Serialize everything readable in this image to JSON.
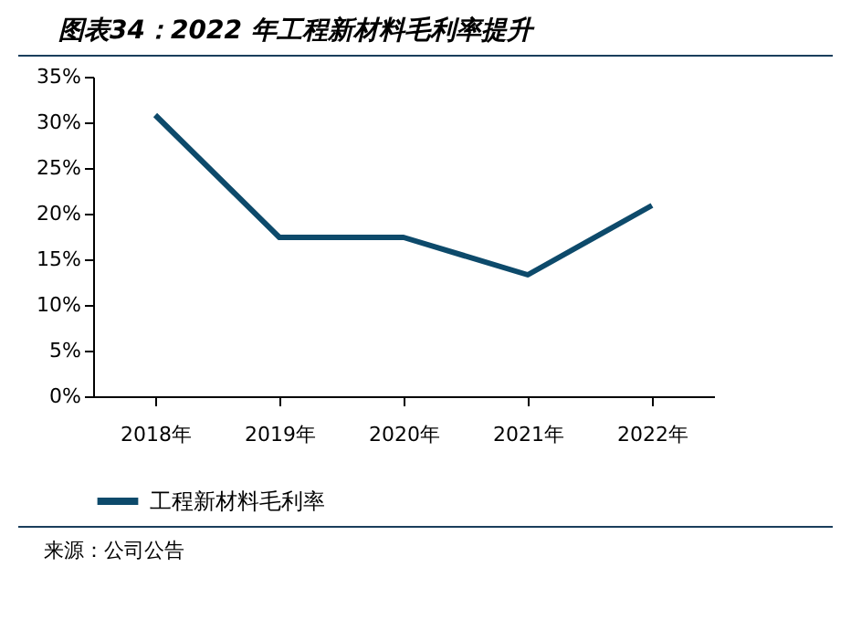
{
  "chart_data": {
    "type": "line",
    "title": "图表34：2022 年工程新材料毛利率提升",
    "categories": [
      "2018年",
      "2019年",
      "2020年",
      "2021年",
      "2022年"
    ],
    "series": [
      {
        "name": "工程新材料毛利率",
        "color": "#0d4a6b",
        "values": [
          30.8,
          17.4,
          17.4,
          13.3,
          20.9
        ]
      }
    ],
    "ylim": [
      0,
      35
    ],
    "yticks": [
      {
        "value": 0,
        "label": "0%"
      },
      {
        "value": 5,
        "label": "5%"
      },
      {
        "value": 10,
        "label": "10%"
      },
      {
        "value": 15,
        "label": "15%"
      },
      {
        "value": 20,
        "label": "20%"
      },
      {
        "value": 25,
        "label": "25%"
      },
      {
        "value": 30,
        "label": "30%"
      },
      {
        "value": 35,
        "label": "35%"
      }
    ],
    "grid": false,
    "legend": "bottom",
    "marker": "none",
    "line_style": "solid",
    "annotations": [
      "来源：公司公告"
    ]
  }
}
